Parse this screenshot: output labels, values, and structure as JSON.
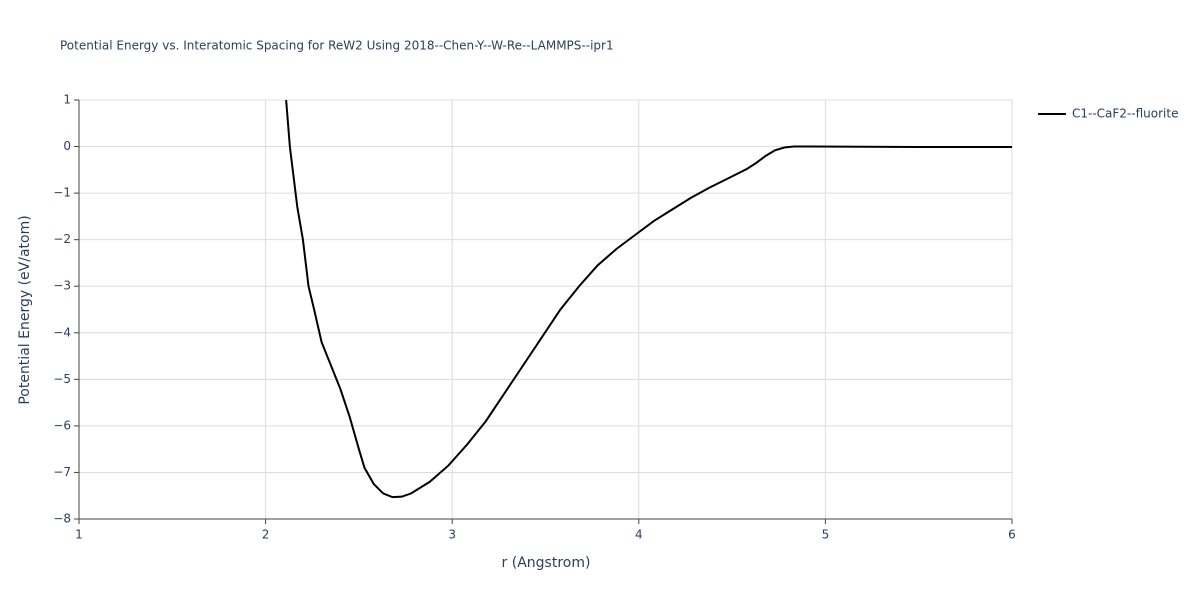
{
  "chart_data": {
    "type": "line",
    "title": "Potential Energy vs. Interatomic Spacing for ReW2 Using 2018--Chen-Y--W-Re--LAMMPS--ipr1",
    "x_label": "r (Angstrom)",
    "y_label": "Potential Energy (eV/atom)",
    "x": [
      2.11,
      2.13,
      2.17,
      2.2,
      2.23,
      2.26,
      2.3,
      2.35,
      2.4,
      2.45,
      2.5,
      2.53,
      2.58,
      2.63,
      2.68,
      2.73,
      2.78,
      2.88,
      2.98,
      3.08,
      3.18,
      3.28,
      3.38,
      3.48,
      3.58,
      3.68,
      3.78,
      3.88,
      3.98,
      4.08,
      4.18,
      4.28,
      4.38,
      4.48,
      4.58,
      4.63,
      4.68,
      4.73,
      4.78,
      4.83,
      4.93,
      5.5,
      6.0
    ],
    "series": [
      {
        "name": "C1--CaF2--fluorite",
        "color": "#000000",
        "values": [
          1,
          0,
          -1.3,
          -2.0,
          -3.0,
          -3.5,
          -4.2,
          -4.7,
          -5.2,
          -5.8,
          -6.5,
          -6.9,
          -7.25,
          -7.45,
          -7.53,
          -7.52,
          -7.45,
          -7.2,
          -6.85,
          -6.4,
          -5.9,
          -5.3,
          -4.7,
          -4.1,
          -3.5,
          -3.0,
          -2.55,
          -2.2,
          -1.9,
          -1.6,
          -1.35,
          -1.1,
          -0.88,
          -0.68,
          -0.48,
          -0.35,
          -0.2,
          -0.08,
          -0.02,
          0,
          0,
          -0.01,
          -0.01
        ]
      }
    ],
    "xlim": [
      1,
      6
    ],
    "ylim": [
      -8,
      1
    ],
    "xticks": [
      1,
      2,
      3,
      4,
      5,
      6
    ],
    "yticks": [
      1,
      0,
      {
        "value": -1,
        "label": "−1"
      },
      {
        "value": -2,
        "label": "−2"
      },
      {
        "value": -3,
        "label": "−3"
      },
      {
        "value": -4,
        "label": "−4"
      },
      {
        "value": -5,
        "label": "−5"
      },
      {
        "value": -6,
        "label": "−6"
      },
      {
        "value": -7,
        "label": "−7"
      },
      {
        "value": -8,
        "label": "−8"
      }
    ],
    "grid": true,
    "legend": "top-right"
  }
}
